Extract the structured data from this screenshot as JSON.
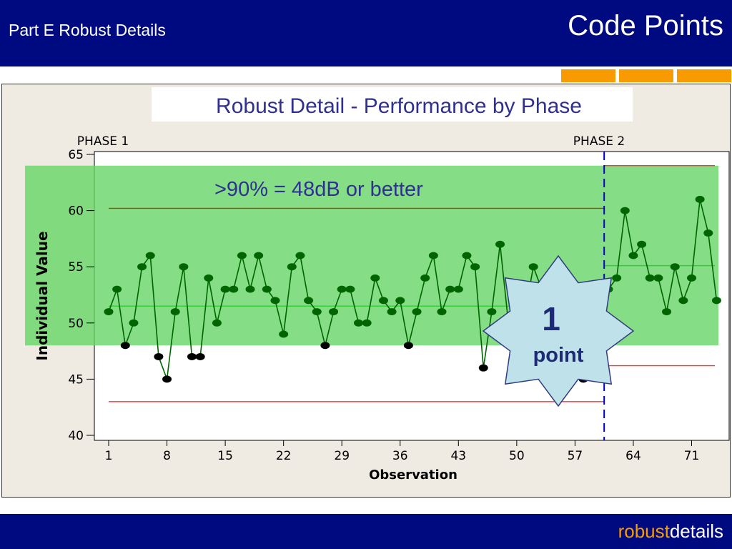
{
  "slide": {
    "subtitle": "Part E Robust Details",
    "title": "Code Points",
    "brand_part1": "robust",
    "brand_part2": "details"
  },
  "chart_data": {
    "type": "line",
    "title": "Robust Detail - Performance by Phase",
    "xlabel": "Observation",
    "ylabel": "Individual Value",
    "xlim": [
      0,
      74
    ],
    "ylim": [
      40,
      65
    ],
    "xticks": [
      1,
      8,
      15,
      22,
      29,
      36,
      43,
      50,
      57,
      64,
      71
    ],
    "yticks": [
      40,
      45,
      50,
      55,
      60,
      65
    ],
    "phase_labels": [
      "PHASE 1",
      "PHASE 2"
    ],
    "phase_split": 60.5,
    "band": {
      "from": 48,
      "to": 64,
      "label": ">90% = 48dB or better",
      "color": "#66d666"
    },
    "callout": {
      "number": "1",
      "text": "point"
    },
    "limits": {
      "phase1": {
        "ucl": 60.2,
        "center": 51.5,
        "lcl": 43
      },
      "phase2": {
        "ucl": 64,
        "center": 55.1,
        "lcl": 46.2
      }
    },
    "colors": {
      "line": "#006400",
      "point_ok": "#006400",
      "point_flag": "#000000",
      "limit": "#ff3333",
      "ucl1": "#aa4400",
      "center": "#33cc33",
      "title": "#303090"
    },
    "series": [
      {
        "values": [
          51,
          53,
          48,
          50,
          55,
          56,
          47,
          45,
          51,
          55,
          47,
          47,
          54,
          50,
          53,
          53,
          56,
          53,
          56,
          53,
          52,
          49,
          55,
          56,
          52,
          51,
          48,
          51,
          53,
          53,
          50,
          50,
          54,
          52,
          51,
          52,
          48,
          51,
          54,
          56,
          51,
          53,
          53,
          56,
          55,
          46,
          51,
          57,
          50,
          52,
          51,
          55,
          53,
          51,
          45,
          47,
          48,
          45,
          51,
          53,
          53,
          54,
          60,
          56,
          57,
          54,
          54,
          51,
          55,
          52,
          54,
          61,
          58,
          52
        ],
        "flagged": [
          3,
          7,
          8,
          11,
          12,
          27,
          37,
          46,
          58
        ]
      }
    ]
  }
}
